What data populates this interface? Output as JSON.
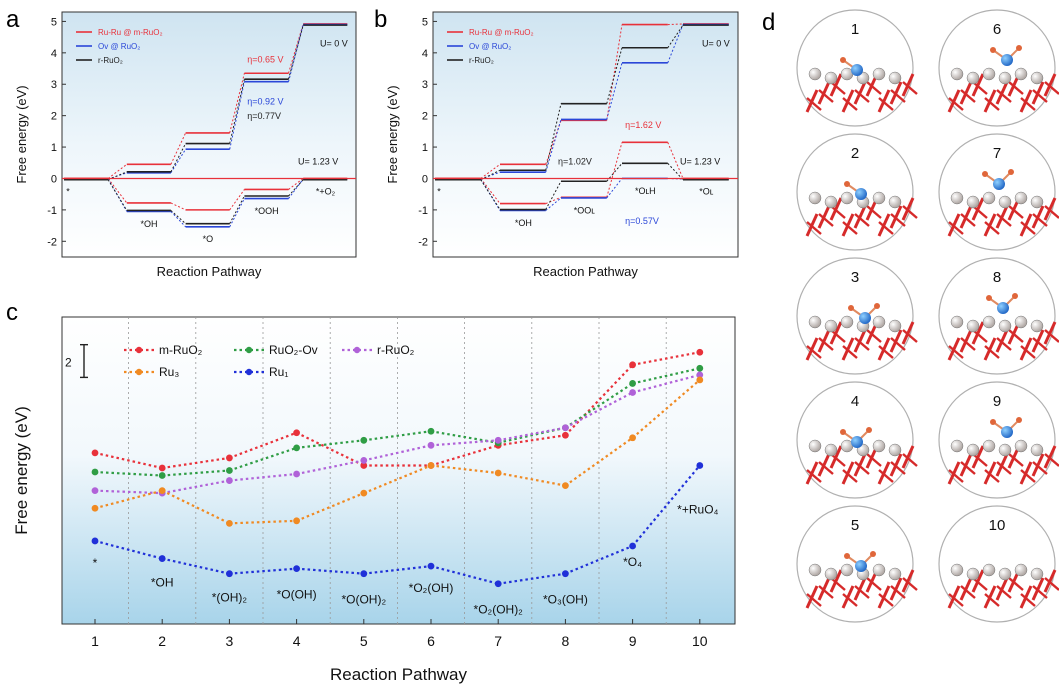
{
  "panel_labels": {
    "a": "a",
    "b": "b",
    "c": "c",
    "d": "d"
  },
  "chart_data": [
    {
      "panel": "a",
      "type": "line",
      "xlabel": "Reaction Pathway",
      "ylabel": "Free energy (eV)",
      "ylim": [
        -2.5,
        5.3
      ],
      "yticks": [
        -2,
        -1,
        0,
        1,
        2,
        3,
        4,
        5
      ],
      "steps": [
        "*",
        "*OH",
        "*O",
        "*OOH",
        "*+O2"
      ],
      "legend": [
        "Ru-Ru @ m-RuO2",
        "Ov @ RuO2",
        "r-RuO2"
      ],
      "colors": {
        "red": "#e8313a",
        "blue": "#2a46d8",
        "black": "#222222"
      },
      "u0_label": "U= 0 V",
      "u123_label": "U= 1.23 V",
      "step_labels": [
        "*",
        "*OH",
        "*O",
        "*OOH",
        "*+O₂"
      ],
      "legend_labels": [
        "Ru-Ru @ m-RuO₂",
        "Ov @ RuO₂",
        "r-RuO₂"
      ],
      "eta": {
        "red": "η=0.65 V",
        "blue": "η=0.92 V",
        "black": "η=0.77V"
      },
      "series_U0": [
        {
          "name": "Ru-Ru @ m-RuO2",
          "values": [
            0,
            0.45,
            1.45,
            3.35,
            4.92
          ]
        },
        {
          "name": "Ov @ RuO2",
          "values": [
            0,
            0.2,
            0.95,
            3.1,
            4.92
          ]
        },
        {
          "name": "r-RuO2",
          "values": [
            0,
            0.25,
            1.15,
            3.2,
            4.92
          ]
        }
      ],
      "series_U123": [
        {
          "name": "Ru-Ru @ m-RuO2",
          "values": [
            0,
            -0.78,
            -1.0,
            -0.35,
            0
          ]
        },
        {
          "name": "Ov @ RuO2",
          "values": [
            0,
            -1.03,
            -1.52,
            -0.62,
            0
          ]
        },
        {
          "name": "r-RuO2",
          "values": [
            0,
            -0.98,
            -1.4,
            -0.52,
            0
          ]
        }
      ]
    },
    {
      "panel": "b",
      "type": "line",
      "xlabel": "Reaction Pathway",
      "ylabel": "Free energy (eV)",
      "ylim": [
        -2.5,
        5.3
      ],
      "yticks": [
        -2,
        -1,
        0,
        1,
        2,
        3,
        4,
        5
      ],
      "steps": [
        "*",
        "*OH",
        "*OOL",
        "*OLH",
        "*OL"
      ],
      "legend": [
        "Ru-Ru @ m-RuO2",
        "Ov @ RuO2",
        "r-RuO2"
      ],
      "colors": {
        "red": "#e8313a",
        "blue": "#2a46d8",
        "black": "#222222"
      },
      "u0_label": "U= 0 V",
      "u123_label": "U= 1.23 V",
      "step_labels": [
        "*",
        "*OH",
        "*OOʟ",
        "*OʟH",
        "*Oʟ"
      ],
      "legend_labels": [
        "Ru-Ru @ m-RuO₂",
        "Ov @ RuO₂",
        "r-RuO₂"
      ],
      "eta": {
        "red": "η=1.62 V",
        "blue": "η=0.57V",
        "black": "η=1.02V"
      },
      "series_U0": [
        {
          "name": "Ru-Ru @ m-RuO2",
          "values": [
            0,
            0.45,
            1.85,
            4.9,
            4.92
          ]
        },
        {
          "name": "Ov @ RuO2",
          "values": [
            0,
            0.22,
            1.9,
            3.7,
            4.92
          ]
        },
        {
          "name": "r-RuO2",
          "values": [
            0,
            0.3,
            2.42,
            4.2,
            4.92
          ]
        }
      ],
      "series_U123": [
        {
          "name": "Ru-Ru @ m-RuO2",
          "values": [
            0,
            -0.8,
            -0.6,
            1.15,
            0
          ]
        },
        {
          "name": "Ov @ RuO2",
          "values": [
            0,
            -1.0,
            -0.6,
            0.02,
            0
          ]
        },
        {
          "name": "r-RuO2",
          "values": [
            0,
            -0.95,
            -0.05,
            0.52,
            0
          ]
        }
      ]
    },
    {
      "panel": "c",
      "type": "line",
      "xlabel": "Reaction Pathway",
      "ylabel": "Free energy (eV)",
      "x": [
        1,
        2,
        3,
        4,
        5,
        6,
        7,
        8,
        9,
        10
      ],
      "scale_bar_label": "2",
      "step_labels": [
        "*",
        "*OH",
        "*(OH)₂",
        "*O(OH)",
        "*O(OH)₂",
        "*O₂(OH)",
        "*O₂(OH)₂",
        "*O₃(OH)",
        "*O₄",
        "*+RuO₄"
      ],
      "legend_labels": [
        "m-RuO₂",
        "RuO₂-Ov",
        "r-RuO₂",
        "Ru₃",
        "Ru₁"
      ],
      "series": [
        {
          "name": "m-RuO2",
          "color": "#e8313a",
          "values": [
            3.2,
            2.9,
            3.1,
            3.6,
            2.95,
            2.95,
            3.35,
            3.55,
            4.95,
            5.2
          ]
        },
        {
          "name": "RuO2-Ov",
          "color": "#2f9d45",
          "values": [
            2.82,
            2.75,
            2.85,
            3.3,
            3.45,
            3.63,
            3.4,
            3.7,
            4.58,
            4.88
          ]
        },
        {
          "name": "r-RuO2",
          "color": "#b062d8",
          "values": [
            2.45,
            2.4,
            2.65,
            2.78,
            3.05,
            3.35,
            3.45,
            3.7,
            4.4,
            4.75
          ]
        },
        {
          "name": "Ru3",
          "color": "#f08a22",
          "values": [
            2.1,
            2.45,
            1.8,
            1.85,
            2.4,
            2.95,
            2.8,
            2.55,
            3.5,
            4.65
          ]
        },
        {
          "name": "Ru1",
          "color": "#2030d8",
          "values": [
            1.45,
            1.1,
            0.8,
            0.9,
            0.8,
            0.95,
            0.6,
            0.8,
            1.35,
            2.95
          ]
        }
      ]
    }
  ],
  "structures": {
    "labels": [
      "1",
      "2",
      "3",
      "4",
      "5",
      "6",
      "7",
      "8",
      "9",
      "10"
    ]
  }
}
